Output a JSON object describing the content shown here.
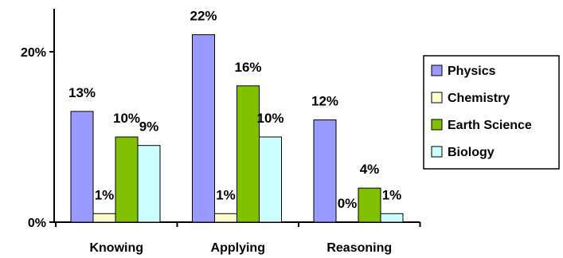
{
  "chart_data": {
    "type": "bar",
    "categories": [
      "Knowing",
      "Applying",
      "Reasoning"
    ],
    "series": [
      {
        "name": "Physics",
        "color": "#9999ff",
        "values": [
          13,
          22,
          12
        ],
        "labels": [
          "13%",
          "22%",
          "12%"
        ]
      },
      {
        "name": "Chemistry",
        "color": "#ffffcc",
        "values": [
          1,
          1,
          0
        ],
        "labels": [
          "1%",
          "1%",
          "0%"
        ]
      },
      {
        "name": "Earth Science",
        "color": "#80c000",
        "values": [
          10,
          16,
          4
        ],
        "labels": [
          "10%",
          "16%",
          "4%"
        ]
      },
      {
        "name": "Biology",
        "color": "#ccffff",
        "values": [
          9,
          10,
          1
        ],
        "labels": [
          "9%",
          "10%",
          "1%"
        ]
      }
    ],
    "y_ticks": [
      {
        "value": 0,
        "label": "0%"
      },
      {
        "value": 20,
        "label": "20%"
      }
    ],
    "ylim": [
      0,
      22
    ],
    "title": "",
    "xlabel": "",
    "ylabel": "",
    "grid": false,
    "legend_position": "right"
  }
}
